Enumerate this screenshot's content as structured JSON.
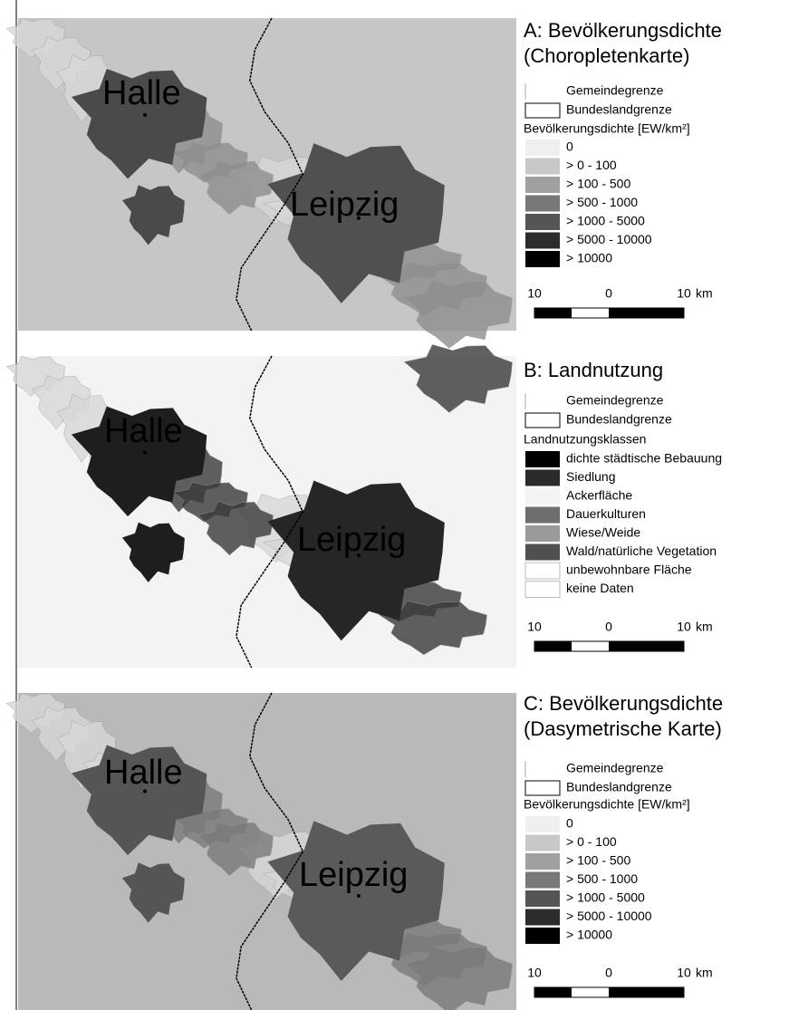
{
  "panels": [
    {
      "title_lines": [
        "A: Bevölkerungsdichte",
        "(Choropletenkarte)"
      ],
      "map_labels": [
        "Halle",
        "Leipzig"
      ],
      "legend": {
        "boundaries": [
          "Gemeindegrenze",
          "Bundeslandgrenze"
        ],
        "heading": "Bevölkerungsdichte [EW/km²]",
        "classes": [
          "0",
          "> 0 - 100",
          "> 100 - 500",
          "> 500 - 1000",
          "> 1000 - 5000",
          "> 5000 - 10000",
          "> 10000"
        ]
      },
      "scale": {
        "ticks": [
          "10",
          "0",
          "10"
        ],
        "unit": "km"
      }
    },
    {
      "title_lines": [
        "B: Landnutzung"
      ],
      "map_labels": [
        "Halle",
        "Leipzig"
      ],
      "legend": {
        "boundaries": [
          "Gemeindegrenze",
          "Bundeslandgrenze"
        ],
        "heading": "Landnutzungsklassen",
        "classes": [
          "dichte städtische Bebauung",
          "Siedlung",
          "Ackerfläche",
          "Dauerkulturen",
          "Wiese/Weide",
          "Wald/natürliche Vegetation",
          "unbewohnbare Fläche",
          "keine Daten"
        ]
      },
      "scale": {
        "ticks": [
          "10",
          "0",
          "10"
        ],
        "unit": "km"
      }
    },
    {
      "title_lines": [
        "C: Bevölkerungsdichte",
        "(Dasymetrische Karte)"
      ],
      "map_labels": [
        "Halle",
        "Leipzig"
      ],
      "legend": {
        "boundaries": [
          "Gemeindegrenze",
          "Bundeslandgrenze"
        ],
        "heading": "Bevölkerungsdichte [EW/km²]",
        "classes": [
          "0",
          "> 0 - 100",
          "> 100 - 500",
          "> 500 - 1000",
          "> 1000 - 5000",
          "> 5000 - 10000",
          "> 10000"
        ]
      },
      "scale": {
        "ticks": [
          "10",
          "0",
          "10"
        ],
        "unit": "km"
      }
    }
  ]
}
